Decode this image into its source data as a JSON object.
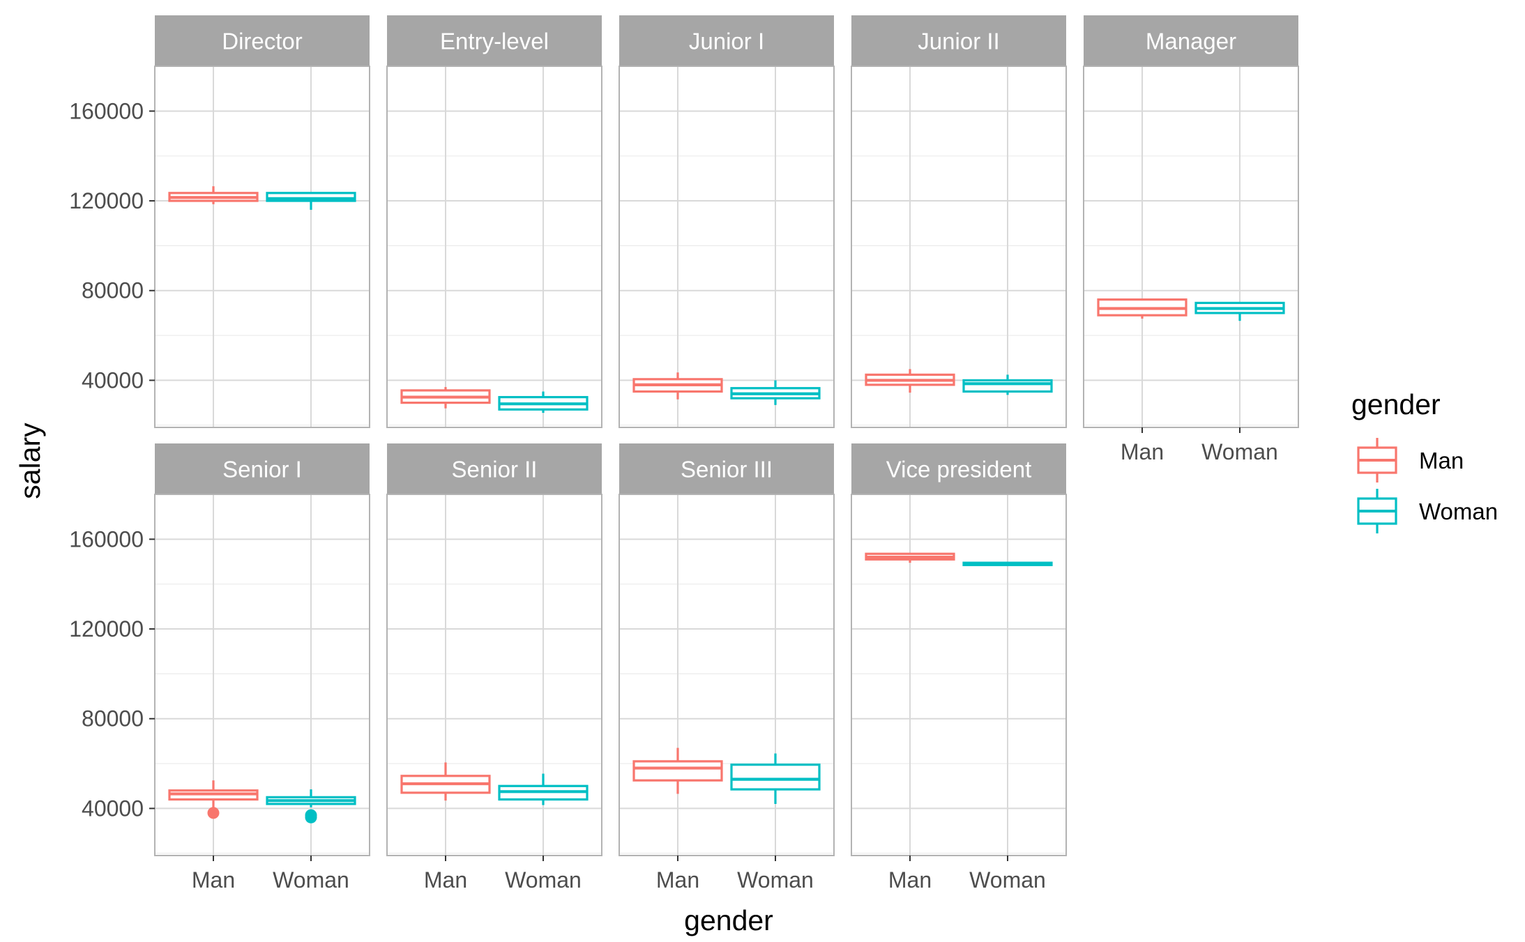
{
  "chart_data": {
    "type": "boxplot",
    "facet_variable": "level",
    "xlabel": "gender",
    "ylabel": "salary",
    "categories": [
      "Man",
      "Woman"
    ],
    "y_ticks": [
      40000,
      80000,
      120000,
      160000
    ],
    "ylim": [
      19000,
      180000
    ],
    "grid": true,
    "legend": {
      "title": "gender",
      "position": "right",
      "entries": [
        {
          "label": "Man",
          "color": "#F8766D"
        },
        {
          "label": "Woman",
          "color": "#00BFC4"
        }
      ]
    },
    "panels": [
      {
        "label": "Director",
        "boxes": [
          {
            "gender": "Man",
            "min": 118500,
            "q1": 120000,
            "median": 121500,
            "q3": 123500,
            "max": 126500,
            "outliers": []
          },
          {
            "gender": "Woman",
            "min": 116000,
            "q1": 120000,
            "median": 121000,
            "q3": 123500,
            "max": 123500,
            "outliers": []
          }
        ]
      },
      {
        "label": "Entry-level",
        "boxes": [
          {
            "gender": "Man",
            "min": 27500,
            "q1": 30000,
            "median": 32500,
            "q3": 35500,
            "max": 37000,
            "outliers": []
          },
          {
            "gender": "Woman",
            "min": 25500,
            "q1": 27000,
            "median": 29500,
            "q3": 32500,
            "max": 35000,
            "outliers": []
          }
        ]
      },
      {
        "label": "Junior I",
        "boxes": [
          {
            "gender": "Man",
            "min": 31500,
            "q1": 35000,
            "median": 38000,
            "q3": 40500,
            "max": 43500,
            "outliers": []
          },
          {
            "gender": "Woman",
            "min": 29000,
            "q1": 32000,
            "median": 34000,
            "q3": 36500,
            "max": 40000,
            "outliers": []
          }
        ]
      },
      {
        "label": "Junior II",
        "boxes": [
          {
            "gender": "Man",
            "min": 34500,
            "q1": 38000,
            "median": 40000,
            "q3": 42500,
            "max": 45000,
            "outliers": []
          },
          {
            "gender": "Woman",
            "min": 33500,
            "q1": 35000,
            "median": 38500,
            "q3": 40000,
            "max": 42500,
            "outliers": []
          }
        ]
      },
      {
        "label": "Manager",
        "boxes": [
          {
            "gender": "Man",
            "min": 67500,
            "q1": 69000,
            "median": 72000,
            "q3": 76000,
            "max": 76000,
            "outliers": []
          },
          {
            "gender": "Woman",
            "min": 66500,
            "q1": 70000,
            "median": 72000,
            "q3": 74500,
            "max": 74500,
            "outliers": []
          }
        ]
      },
      {
        "label": "Senior I",
        "boxes": [
          {
            "gender": "Man",
            "min": 40000,
            "q1": 44000,
            "median": 46500,
            "q3": 48000,
            "max": 52500,
            "outliers": [
              38000
            ]
          },
          {
            "gender": "Woman",
            "min": 40500,
            "q1": 42000,
            "median": 43500,
            "q3": 45000,
            "max": 48500,
            "outliers": [
              37000,
              36000
            ]
          }
        ]
      },
      {
        "label": "Senior II",
        "boxes": [
          {
            "gender": "Man",
            "min": 43500,
            "q1": 47000,
            "median": 51000,
            "q3": 54500,
            "max": 60500,
            "outliers": []
          },
          {
            "gender": "Woman",
            "min": 41500,
            "q1": 44000,
            "median": 47500,
            "q3": 50000,
            "max": 55500,
            "outliers": []
          }
        ]
      },
      {
        "label": "Senior III",
        "boxes": [
          {
            "gender": "Man",
            "min": 46500,
            "q1": 52500,
            "median": 58000,
            "q3": 61000,
            "max": 67000,
            "outliers": []
          },
          {
            "gender": "Woman",
            "min": 42000,
            "q1": 48500,
            "median": 53000,
            "q3": 59500,
            "max": 64500,
            "outliers": []
          }
        ]
      },
      {
        "label": "Vice president",
        "boxes": [
          {
            "gender": "Man",
            "min": 149500,
            "q1": 151000,
            "median": 152000,
            "q3": 153500,
            "max": 153500,
            "outliers": []
          },
          {
            "gender": "Woman",
            "min": 148500,
            "q1": 148500,
            "median": 149000,
            "q3": 149500,
            "max": 149500,
            "outliers": []
          }
        ]
      }
    ]
  }
}
